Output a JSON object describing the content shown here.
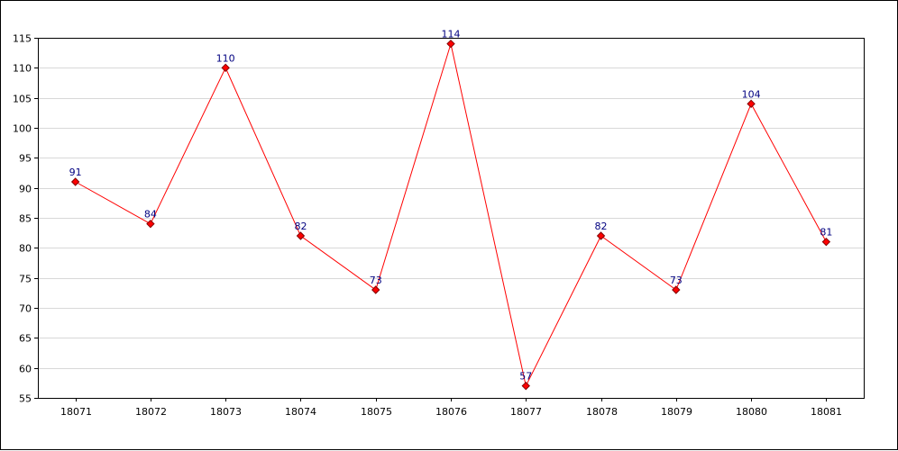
{
  "chart_data": {
    "type": "line",
    "title": "",
    "xlabel": "",
    "ylabel": "",
    "categories": [
      "18071",
      "18072",
      "18073",
      "18074",
      "18075",
      "18076",
      "18077",
      "18078",
      "18079",
      "18080",
      "18081"
    ],
    "series": [
      {
        "values": [
          91,
          84,
          110,
          82,
          73,
          114,
          57,
          82,
          73,
          104,
          81
        ]
      }
    ],
    "ylim": [
      55,
      115
    ],
    "y_ticks": [
      55,
      60,
      65,
      70,
      75,
      80,
      85,
      90,
      95,
      100,
      105,
      110,
      115
    ],
    "grid": "horizontal",
    "data_labels": true,
    "colors": {
      "line": "#ff0000",
      "marker_fill": "#ff0000",
      "marker_stroke": "#800000",
      "data_label": "#000080",
      "grid": "#d8d8d8",
      "axis": "#000000"
    }
  }
}
